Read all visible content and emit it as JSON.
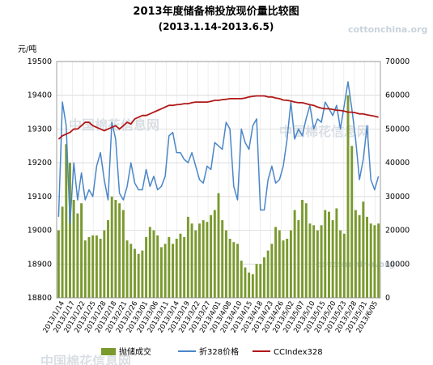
{
  "watermark": {
    "site": "cottonchina.org",
    "cn": "中国棉花信息网"
  },
  "chart_data": {
    "type": "bar+line",
    "title": "2013年度储备棉投放现价量比较图",
    "subtitle": "(2013.1.14-2013.6.5)",
    "y_left_unit": "元/吨",
    "y_left_range": [
      18800,
      19500
    ],
    "y_left_ticks": [
      "18800",
      "18900",
      "19000",
      "19100",
      "19200",
      "19300",
      "19400",
      "19500"
    ],
    "y_right_range": [
      0,
      70000
    ],
    "y_right_ticks": [
      "0",
      "10000",
      "20000",
      "30000",
      "40000",
      "50000",
      "60000",
      "70000"
    ],
    "grid": true,
    "legend_position": "bottom",
    "x_labels": [
      "2013/1/14",
      "2013/1/17",
      "2013/1/22",
      "2013/1/25",
      "2013/1/28",
      "2013/2/18",
      "2013/2/21",
      "2013/2/26",
      "2013/3/01",
      "2013/3/06",
      "2013/3/11",
      "2013/3/14",
      "2013/3/19",
      "2013/3/22",
      "2013/3/27",
      "2013/4/01",
      "2013/4/08",
      "2013/4/10",
      "2013/4/15",
      "2013/4/18",
      "2013/4/23",
      "2013/4/26",
      "2013/5/02",
      "2013/5/07",
      "2013/5/10",
      "2013/5/15",
      "2013/5/20",
      "2013/5/23",
      "2013/5/28",
      "2013/5/31",
      "2013/6/05"
    ],
    "series": [
      {
        "name": "抛储成交",
        "type": "bar",
        "axis": "right",
        "color": "#7a9a2e",
        "values": [
          20000,
          27000,
          45500,
          40000,
          29000,
          25000,
          28000,
          17000,
          18000,
          18500,
          18500,
          17500,
          20000,
          23000,
          30000,
          29000,
          28000,
          26000,
          17000,
          16000,
          14500,
          13000,
          14000,
          18000,
          21000,
          20000,
          18500,
          15000,
          16000,
          18000,
          16000,
          17500,
          19000,
          18000,
          24000,
          22000,
          20000,
          22000,
          23000,
          22500,
          24500,
          26000,
          31000,
          23000,
          20000,
          17500,
          16500,
          16000,
          11000,
          9000,
          7500,
          7000,
          10000,
          10000,
          12000,
          14000,
          16000,
          21000,
          20000,
          17000,
          17500,
          20000,
          26000,
          23000,
          29000,
          28000,
          22000,
          21500,
          20000,
          21500,
          26000,
          25500,
          23000,
          26500,
          20000,
          19000,
          60000,
          45000,
          26000,
          24500,
          28500,
          24000,
          22000,
          21500,
          22000
        ],
        "color_name": "olive-green"
      },
      {
        "name": "折328价格",
        "type": "line",
        "axis": "left",
        "color": "#4a86c8",
        "values": [
          19040,
          19380,
          19310,
          19020,
          19200,
          19090,
          19170,
          19090,
          19120,
          19100,
          19190,
          19230,
          19150,
          19090,
          19320,
          19270,
          19110,
          19090,
          19130,
          19200,
          19140,
          19120,
          19120,
          19180,
          19130,
          19160,
          19120,
          19130,
          19160,
          19280,
          19290,
          19230,
          19230,
          19210,
          19200,
          19230,
          19190,
          19150,
          19140,
          19190,
          19180,
          19260,
          19250,
          19240,
          19320,
          19300,
          19130,
          19090,
          19300,
          19260,
          19240,
          19310,
          19330,
          19060,
          19060,
          19150,
          19190,
          19140,
          19150,
          19190,
          19270,
          19380,
          19270,
          19300,
          19280,
          19330,
          19370,
          19300,
          19330,
          19320,
          19380,
          19360,
          19340,
          19370,
          19300,
          19370,
          19440,
          19360,
          19270,
          19150,
          19210,
          19310,
          19150,
          19120,
          19160
        ]
      },
      {
        "name": "CCIndex328",
        "type": "line",
        "axis": "left",
        "color": "#b01818",
        "values": [
          19270,
          19280,
          19285,
          19290,
          19300,
          19300,
          19310,
          19320,
          19320,
          19310,
          19305,
          19300,
          19295,
          19300,
          19305,
          19310,
          19300,
          19310,
          19320,
          19315,
          19330,
          19335,
          19340,
          19340,
          19345,
          19350,
          19355,
          19360,
          19365,
          19370,
          19370,
          19372,
          19373,
          19375,
          19375,
          19378,
          19380,
          19380,
          19380,
          19380,
          19382,
          19385,
          19385,
          19387,
          19388,
          19390,
          19390,
          19390,
          19390,
          19392,
          19395,
          19397,
          19398,
          19398,
          19398,
          19395,
          19395,
          19392,
          19390,
          19386,
          19385,
          19383,
          19380,
          19378,
          19378,
          19375,
          19372,
          19370,
          19365,
          19362,
          19360,
          19360,
          19358,
          19356,
          19355,
          19353,
          19350,
          19350,
          19348,
          19345,
          19345,
          19342,
          19340,
          19338,
          19335
        ]
      }
    ]
  }
}
